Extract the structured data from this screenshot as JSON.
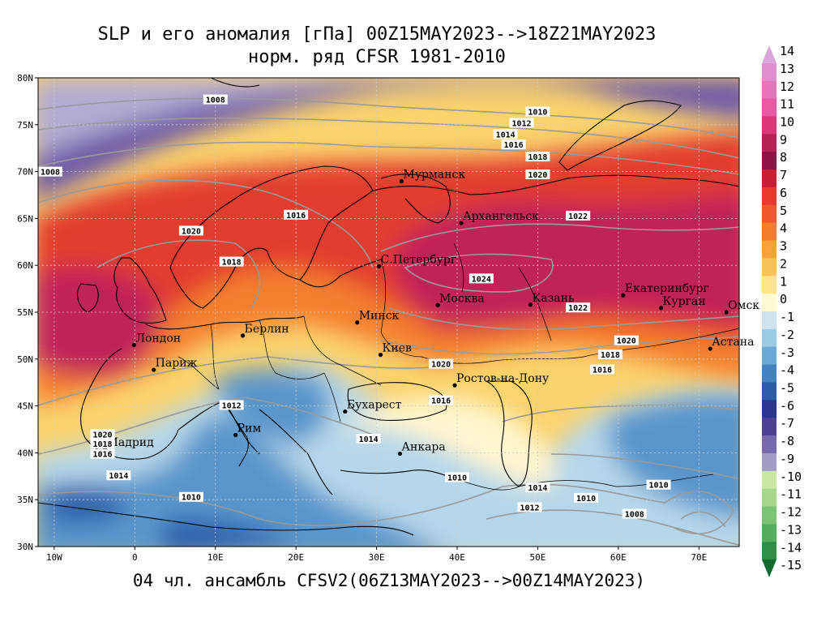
{
  "title_line1": "SLP и его аномалия [гПа] 00Z15MAY2023-->18Z21MAY2023",
  "title_line2": "норм. ряд CFSR 1981-2010",
  "footer": "04 чл. ансамбль CFSV2(06Z13MAY2023-->00Z14MAY2023)",
  "axes": {
    "lat_labels": [
      "80N",
      "75N",
      "70N",
      "65N",
      "60N",
      "55N",
      "50N",
      "45N",
      "40N",
      "35N",
      "30N"
    ],
    "lon_labels": [
      "10W",
      "0",
      "10E",
      "20E",
      "30E",
      "40E",
      "50E",
      "60E",
      "70E"
    ]
  },
  "cities": [
    {
      "name": "Мурманск",
      "lon": 33.1,
      "lat": 68.97
    },
    {
      "name": "Архангельск",
      "lon": 40.5,
      "lat": 64.5
    },
    {
      "name": "С.Петербург",
      "lon": 30.3,
      "lat": 59.9
    },
    {
      "name": "Москва",
      "lon": 37.6,
      "lat": 55.75
    },
    {
      "name": "Казань",
      "lon": 49.1,
      "lat": 55.8
    },
    {
      "name": "Екатеринбург",
      "lon": 60.6,
      "lat": 56.8
    },
    {
      "name": "Курган",
      "lon": 65.3,
      "lat": 55.45
    },
    {
      "name": "Омск",
      "lon": 73.4,
      "lat": 55.0
    },
    {
      "name": "Астана",
      "lon": 71.4,
      "lat": 51.1
    },
    {
      "name": "Минск",
      "lon": 27.6,
      "lat": 53.9
    },
    {
      "name": "Киев",
      "lon": 30.5,
      "lat": 50.45
    },
    {
      "name": "Берлин",
      "lon": 13.4,
      "lat": 52.5
    },
    {
      "name": "Лондон",
      "lon": -0.1,
      "lat": 51.5
    },
    {
      "name": "Париж",
      "lon": 2.35,
      "lat": 48.85
    },
    {
      "name": "Ростов-на-Дону",
      "lon": 39.7,
      "lat": 47.2
    },
    {
      "name": "Бухарест",
      "lon": 26.1,
      "lat": 44.4
    },
    {
      "name": "Анкара",
      "lon": 32.9,
      "lat": 39.9
    },
    {
      "name": "Рим",
      "lon": 12.5,
      "lat": 41.9
    },
    {
      "name": "Мадрид",
      "lon": -3.7,
      "lat": 40.4
    }
  ],
  "isobar_labels": [
    {
      "text": "1008",
      "lon": 10.0,
      "lat": 77.7
    },
    {
      "text": "1010",
      "lon": 50.0,
      "lat": 76.4
    },
    {
      "text": "1012",
      "lon": 48.0,
      "lat": 75.2
    },
    {
      "text": "1014",
      "lon": 46.0,
      "lat": 74.0
    },
    {
      "text": "1016",
      "lon": 47.0,
      "lat": 72.9
    },
    {
      "text": "1018",
      "lon": 50.0,
      "lat": 71.6
    },
    {
      "text": "1020",
      "lon": 50.0,
      "lat": 69.7
    },
    {
      "text": "1008",
      "lon": -10.5,
      "lat": 70.0
    },
    {
      "text": "1016",
      "lon": 20.0,
      "lat": 65.4
    },
    {
      "text": "1022",
      "lon": 55.0,
      "lat": 65.3
    },
    {
      "text": "1020",
      "lon": 7.0,
      "lat": 63.7
    },
    {
      "text": "1018",
      "lon": 12.0,
      "lat": 60.4
    },
    {
      "text": "1024",
      "lon": 43.0,
      "lat": 58.6
    },
    {
      "text": "1022",
      "lon": 55.0,
      "lat": 55.5
    },
    {
      "text": "1020",
      "lon": 61.0,
      "lat": 52.0
    },
    {
      "text": "1018",
      "lon": 59.0,
      "lat": 50.5
    },
    {
      "text": "1016",
      "lon": 58.0,
      "lat": 48.9
    },
    {
      "text": "1020",
      "lon": 38.0,
      "lat": 49.5
    },
    {
      "text": "1016",
      "lon": 38.0,
      "lat": 45.6
    },
    {
      "text": "1012",
      "lon": 12.0,
      "lat": 45.1
    },
    {
      "text": "1014",
      "lon": 29.0,
      "lat": 41.5
    },
    {
      "text": "1020",
      "lon": -4.0,
      "lat": 42.0
    },
    {
      "text": "1018",
      "lon": -4.0,
      "lat": 41.0
    },
    {
      "text": "1016",
      "lon": -4.0,
      "lat": 39.9
    },
    {
      "text": "1014",
      "lon": -2.0,
      "lat": 37.6
    },
    {
      "text": "1010",
      "lon": 7.0,
      "lat": 35.3
    },
    {
      "text": "1010",
      "lon": 40.0,
      "lat": 37.4
    },
    {
      "text": "1014",
      "lon": 50.0,
      "lat": 36.3
    },
    {
      "text": "1012",
      "lon": 49.0,
      "lat": 34.2
    },
    {
      "text": "1010",
      "lon": 56.0,
      "lat": 35.2
    },
    {
      "text": "1010",
      "lon": 65.0,
      "lat": 36.6
    },
    {
      "text": "1008",
      "lon": 62.0,
      "lat": 33.5
    }
  ],
  "colorbar": {
    "labels": [
      "14",
      "13",
      "12",
      "11",
      "10",
      "9",
      "8",
      "7",
      "6",
      "5",
      "4",
      "3",
      "2",
      "1",
      "0",
      "-1",
      "-2",
      "-3",
      "-4",
      "-5",
      "-6",
      "-7",
      "-8",
      "-9",
      "-10",
      "-11",
      "-12",
      "-13",
      "-14",
      "-15"
    ],
    "colors": [
      "#d9a6da",
      "#e08ed0",
      "#e574bb",
      "#e85aa3",
      "#d93876",
      "#b52055",
      "#8f1042",
      "#c81e33",
      "#e73a2c",
      "#f05a2a",
      "#f57e2d",
      "#f9a13c",
      "#fcc25a",
      "#fee48a",
      "#fffbd2",
      "#cfe3ef",
      "#9ccbe6",
      "#6aa9d6",
      "#4281c2",
      "#2a5ca9",
      "#2a3590",
      "#4e3f97",
      "#7868ae",
      "#a39bc8",
      "#c9e8a4",
      "#a6d88c",
      "#7bc474",
      "#52ad5c",
      "#2c8f45",
      "#146b32"
    ]
  },
  "field_colors": {
    "purple_deep": "#6e5aa8",
    "purple_light": "#b3abd3",
    "magenta": "#c0245a",
    "red": "#e23d2e",
    "orange": "#f57f2e",
    "yellow": "#fbd36c",
    "cream": "#fff6cf",
    "blue_light": "#b6d7ea",
    "blue": "#5a96cc",
    "blue_deep": "#2f63ad"
  }
}
